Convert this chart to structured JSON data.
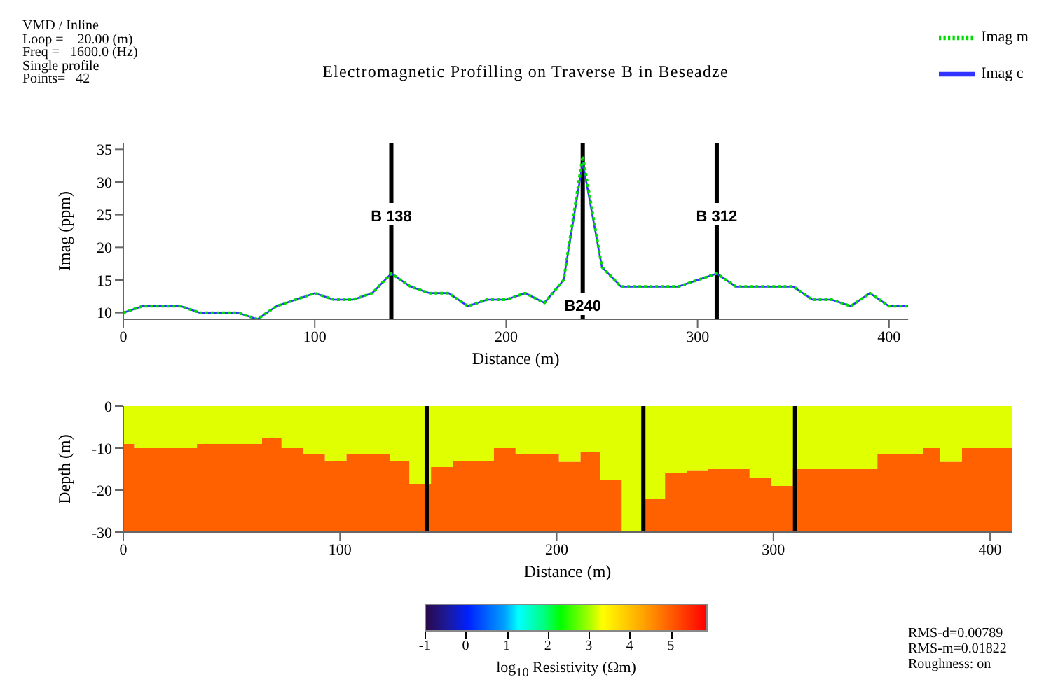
{
  "chart_data": [
    {
      "type": "line",
      "title": "Electromagnetic Profilling on Traverse B in Beseadze",
      "xlabel": "Distance (m)",
      "ylabel": "Imag (ppm)",
      "annotations": [
        "VMD / Inline",
        "Loop =    20.00 (m)",
        "Freq =   1600.0 (Hz)",
        "Single profile",
        "Points=   42"
      ],
      "x": [
        0,
        10,
        20,
        30,
        40,
        50,
        60,
        70,
        80,
        90,
        100,
        110,
        120,
        130,
        140,
        150,
        160,
        170,
        180,
        190,
        200,
        210,
        220,
        230,
        240,
        250,
        260,
        270,
        280,
        290,
        300,
        310,
        320,
        330,
        340,
        350,
        360,
        370,
        380,
        390,
        400,
        410
      ],
      "series": [
        {
          "name": "Imag m",
          "color": "#00dd00",
          "line_style": "dotted",
          "values": [
            10,
            11,
            11,
            11,
            10,
            10,
            10,
            9,
            11,
            12,
            13,
            12,
            12,
            13,
            16,
            14,
            13,
            13,
            11,
            12,
            12,
            13,
            11.5,
            15,
            34,
            17,
            14,
            14,
            14,
            14,
            15,
            16,
            14,
            14,
            14,
            14,
            12,
            12,
            11,
            13,
            11,
            11
          ]
        },
        {
          "name": "Imag c",
          "color": "#3333ff",
          "line_style": "solid",
          "values": [
            10,
            11,
            11,
            11,
            10,
            10,
            10,
            9,
            11,
            12,
            13,
            12,
            12,
            13,
            16,
            14,
            13,
            13,
            11,
            12,
            12,
            13,
            11.5,
            15,
            33,
            17,
            14,
            14,
            14,
            14,
            15,
            16,
            14,
            14,
            14,
            14,
            12,
            12,
            11,
            13,
            11,
            11
          ]
        }
      ],
      "xlim": [
        0,
        410
      ],
      "xticks": [
        0,
        100,
        200,
        300,
        400
      ],
      "ylim": [
        9,
        36
      ],
      "yticks": [
        10,
        15,
        20,
        25,
        30,
        35
      ],
      "ref_lines": [
        {
          "axis": "x",
          "value": 140,
          "label": "B 138",
          "color": "#000000"
        },
        {
          "axis": "x",
          "value": 240,
          "label": "B240",
          "color": "#000000"
        },
        {
          "axis": "x",
          "value": 310,
          "label": "B 312",
          "color": "#000000"
        }
      ],
      "legend": "top right"
    },
    {
      "type": "area",
      "stacked": true,
      "xlabel": "Distance (m)",
      "ylabel": "Depth (m)",
      "clabel": "log$_{10}$ Resistivity (Ωm)",
      "clim": [
        -1,
        5.9
      ],
      "cticks": [
        -1,
        0,
        1,
        2,
        3,
        4,
        5
      ],
      "annotations": [
        "RMS-d=0.00789",
        "RMS-m=0.01822",
        "Roughness: on"
      ],
      "x": [
        0,
        5,
        34,
        64,
        73,
        83,
        93,
        103,
        123,
        132,
        142,
        152,
        171,
        181,
        201,
        211,
        220,
        230,
        240,
        250,
        260,
        270,
        289,
        299,
        309,
        348,
        369,
        377,
        387,
        410
      ],
      "series": [
        {
          "color": "#e0ff00",
          "values": [
            -9,
            -10,
            -9,
            -7.5,
            -10,
            -11.5,
            -13,
            -11.5,
            -13,
            -18.5,
            -14.5,
            -13,
            -10,
            -11.5,
            -13.3,
            -11,
            -17.5,
            -30,
            -22,
            -16,
            -15.3,
            -15,
            -17,
            -19,
            -15,
            -11.5,
            -10,
            -13.3,
            -10,
            -10
          ]
        },
        {
          "color": "#ff6000",
          "values": [
            -21,
            -20,
            -21,
            -22.5,
            -20,
            -18.5,
            -17,
            -18.5,
            -17,
            -11.5,
            -15.5,
            -17,
            -20,
            -18.5,
            -16.7,
            -19,
            -12.5,
            0,
            -8,
            -14,
            -14.7,
            -15,
            -13,
            -11,
            -15,
            -18.5,
            -20,
            -16.7,
            -20,
            -20
          ]
        }
      ],
      "xlim": [
        0,
        410
      ],
      "xticks": [
        0,
        100,
        200,
        300,
        400
      ],
      "ylim": [
        -30,
        0
      ],
      "yticks": [
        -30,
        -20,
        -10,
        0
      ],
      "ref_lines": [
        {
          "axis": "x",
          "value": 140,
          "color": "#000000"
        },
        {
          "axis": "x",
          "value": 240,
          "color": "#000000"
        },
        {
          "axis": "x",
          "value": 310,
          "color": "#000000"
        }
      ]
    }
  ]
}
